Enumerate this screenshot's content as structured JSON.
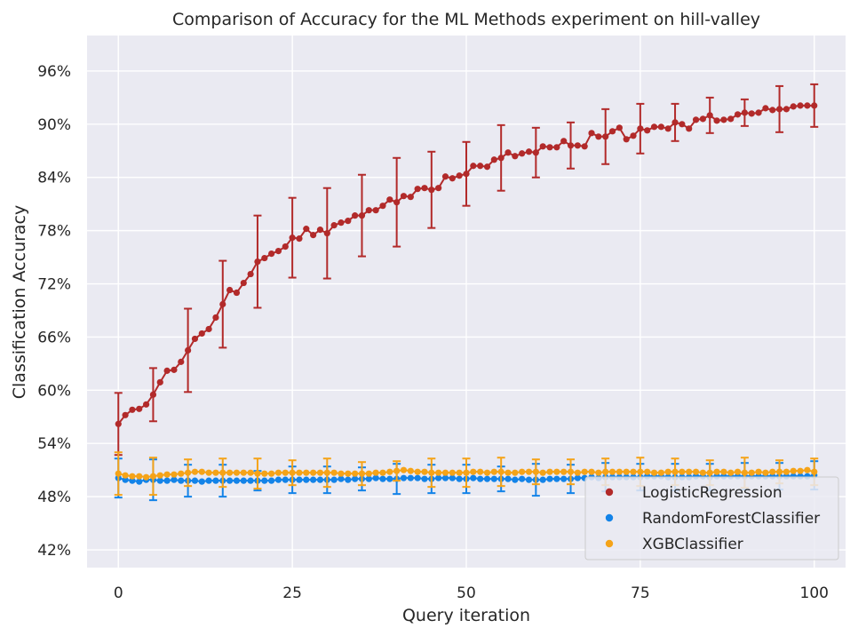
{
  "chart_data": {
    "type": "line",
    "title": "Comparison of Accuracy for the ML Methods experiment on hill-valley",
    "xlabel": "Query iteration",
    "ylabel": "Classification Accuracy",
    "xlim": [
      -4.5,
      104.5
    ],
    "ylim": [
      40,
      100
    ],
    "x_ticks": [
      0,
      25,
      50,
      75,
      100
    ],
    "y_ticks": [
      42,
      48,
      54,
      60,
      66,
      72,
      78,
      84,
      90,
      96
    ],
    "y_tick_labels": [
      "42%",
      "48%",
      "54%",
      "60%",
      "66%",
      "72%",
      "78%",
      "84%",
      "90%",
      "96%"
    ],
    "grid": true,
    "legend_position": "lower-right",
    "errorbar_every": 5,
    "series": [
      {
        "name": "LogisticRegression",
        "color": "#b22a2a",
        "marker": "circle",
        "values": [
          56.2,
          57.2,
          57.8,
          57.9,
          58.4,
          59.5,
          60.9,
          62.2,
          62.3,
          63.2,
          64.5,
          65.8,
          66.4,
          66.9,
          68.2,
          69.7,
          71.3,
          71.0,
          72.1,
          73.1,
          74.5,
          74.9,
          75.4,
          75.7,
          76.2,
          77.2,
          77.1,
          78.2,
          77.5,
          78.1,
          77.7,
          78.6,
          78.9,
          79.1,
          79.7,
          79.7,
          80.3,
          80.3,
          80.8,
          81.5,
          81.2,
          81.9,
          81.8,
          82.7,
          82.8,
          82.6,
          82.8,
          84.1,
          83.9,
          84.2,
          84.4,
          85.3,
          85.3,
          85.2,
          86.0,
          86.2,
          86.8,
          86.4,
          86.7,
          86.9,
          86.8,
          87.5,
          87.4,
          87.4,
          88.1,
          87.6,
          87.6,
          87.5,
          89.0,
          88.6,
          88.6,
          89.2,
          89.6,
          88.3,
          88.7,
          89.5,
          89.3,
          89.7,
          89.7,
          89.5,
          90.2,
          90.0,
          89.5,
          90.5,
          90.6,
          91.0,
          90.4,
          90.5,
          90.6,
          91.1,
          91.3,
          91.2,
          91.3,
          91.8,
          91.6,
          91.7,
          91.7,
          92.0,
          92.1,
          92.1,
          92.1
        ],
        "error": [
          3.5,
          3.0,
          3.0,
          3.0,
          3.0,
          3.0,
          3.0,
          3.0,
          3.0,
          3.0,
          4.7,
          4.7,
          4.7,
          4.7,
          4.7,
          4.9,
          4.9,
          4.9,
          4.9,
          4.9,
          5.2,
          5.2,
          5.2,
          5.2,
          5.2,
          4.5,
          4.5,
          4.5,
          4.5,
          4.5,
          5.1,
          5.1,
          5.1,
          5.1,
          5.1,
          4.6,
          4.6,
          4.6,
          4.6,
          4.6,
          5.0,
          5.0,
          5.0,
          5.0,
          5.0,
          4.3,
          4.3,
          4.3,
          4.3,
          4.3,
          3.6,
          3.6,
          3.6,
          3.6,
          3.6,
          3.7,
          3.7,
          3.7,
          3.7,
          3.7,
          2.8,
          2.8,
          2.8,
          2.8,
          2.8,
          2.6,
          2.6,
          2.6,
          2.6,
          2.6,
          3.1,
          3.1,
          3.1,
          3.1,
          3.1,
          2.8,
          2.8,
          2.8,
          2.8,
          2.8,
          2.1,
          2.1,
          2.1,
          2.1,
          2.1,
          2.0,
          2.0,
          2.0,
          2.0,
          2.0,
          1.5,
          1.5,
          1.5,
          1.5,
          1.5,
          2.6,
          2.6,
          2.6,
          2.6,
          2.6,
          2.4
        ]
      },
      {
        "name": "RandomForestClassifier",
        "color": "#1383e8",
        "marker": "circle",
        "values": [
          50.1,
          49.9,
          49.8,
          49.7,
          49.9,
          49.9,
          49.8,
          49.8,
          49.9,
          49.8,
          49.8,
          49.8,
          49.7,
          49.8,
          49.8,
          49.8,
          49.8,
          49.8,
          49.8,
          49.8,
          49.8,
          49.8,
          49.8,
          49.9,
          49.9,
          49.9,
          49.9,
          49.9,
          49.9,
          49.9,
          49.9,
          49.9,
          50.0,
          49.9,
          50.0,
          50.0,
          50.0,
          50.1,
          50.0,
          50.0,
          50.0,
          50.1,
          50.1,
          50.1,
          50.0,
          50.0,
          50.1,
          50.1,
          50.1,
          50.0,
          50.0,
          50.1,
          50.0,
          50.0,
          50.0,
          50.0,
          50.0,
          49.9,
          50.0,
          49.9,
          49.9,
          49.9,
          50.0,
          50.0,
          50.0,
          50.0,
          50.1,
          50.1,
          50.2,
          50.1,
          50.2,
          50.2,
          50.2,
          50.2,
          50.2,
          50.2,
          50.3,
          50.3,
          50.3,
          50.2,
          50.2,
          50.2,
          50.2,
          50.3,
          50.3,
          50.2,
          50.3,
          50.3,
          50.3,
          50.3,
          50.3,
          50.3,
          50.3,
          50.3,
          50.3,
          50.3,
          50.3,
          50.3,
          50.3,
          50.3,
          50.4
        ],
        "error": [
          2.2,
          2.2,
          2.2,
          2.2,
          2.2,
          2.3,
          2.3,
          2.3,
          2.3,
          2.3,
          1.8,
          1.8,
          1.8,
          1.8,
          1.8,
          1.8,
          1.8,
          1.8,
          1.8,
          1.8,
          1.1,
          1.1,
          1.1,
          1.1,
          1.1,
          1.5,
          1.5,
          1.5,
          1.5,
          1.5,
          1.5,
          1.5,
          1.5,
          1.5,
          1.5,
          1.3,
          1.3,
          1.3,
          1.3,
          1.3,
          1.7,
          1.7,
          1.7,
          1.7,
          1.7,
          1.6,
          1.6,
          1.6,
          1.6,
          1.6,
          1.6,
          1.6,
          1.6,
          1.6,
          1.6,
          1.4,
          1.4,
          1.4,
          1.4,
          1.4,
          1.8,
          1.8,
          1.8,
          1.8,
          1.8,
          1.6,
          1.6,
          1.6,
          1.6,
          1.6,
          1.6,
          1.6,
          1.6,
          1.6,
          1.6,
          1.5,
          1.5,
          1.5,
          1.5,
          1.5,
          1.5,
          1.5,
          1.5,
          1.5,
          1.5,
          1.5,
          1.5,
          1.5,
          1.5,
          1.5,
          1.5,
          1.5,
          1.5,
          1.5,
          1.5,
          1.5,
          1.5,
          1.5,
          1.5,
          1.5,
          1.6
        ]
      },
      {
        "name": "XGBClassifier",
        "color": "#f5a318",
        "marker": "circle",
        "values": [
          50.6,
          50.4,
          50.3,
          50.3,
          50.2,
          50.3,
          50.4,
          50.5,
          50.5,
          50.6,
          50.7,
          50.8,
          50.8,
          50.7,
          50.7,
          50.7,
          50.7,
          50.7,
          50.7,
          50.7,
          50.6,
          50.6,
          50.6,
          50.7,
          50.7,
          50.7,
          50.7,
          50.7,
          50.7,
          50.7,
          50.7,
          50.7,
          50.6,
          50.6,
          50.6,
          50.6,
          50.6,
          50.7,
          50.7,
          50.8,
          50.9,
          51.0,
          50.9,
          50.8,
          50.8,
          50.7,
          50.7,
          50.7,
          50.7,
          50.7,
          50.7,
          50.8,
          50.8,
          50.7,
          50.8,
          50.8,
          50.7,
          50.7,
          50.8,
          50.8,
          50.8,
          50.7,
          50.8,
          50.8,
          50.8,
          50.8,
          50.7,
          50.8,
          50.8,
          50.7,
          50.8,
          50.8,
          50.8,
          50.8,
          50.8,
          50.8,
          50.8,
          50.7,
          50.7,
          50.8,
          50.8,
          50.8,
          50.8,
          50.8,
          50.7,
          50.7,
          50.8,
          50.8,
          50.7,
          50.8,
          50.7,
          50.7,
          50.8,
          50.7,
          50.8,
          50.8,
          50.8,
          50.9,
          50.9,
          51.0,
          50.8
        ],
        "error": [
          2.4,
          2.4,
          2.4,
          2.4,
          2.4,
          2.1,
          2.1,
          2.1,
          2.1,
          2.1,
          1.5,
          1.5,
          1.5,
          1.5,
          1.5,
          1.6,
          1.6,
          1.6,
          1.6,
          1.6,
          1.7,
          1.7,
          1.7,
          1.7,
          1.7,
          1.4,
          1.4,
          1.4,
          1.4,
          1.4,
          1.6,
          1.6,
          1.6,
          1.6,
          1.6,
          1.3,
          1.3,
          1.3,
          1.3,
          1.3,
          1.1,
          1.1,
          1.1,
          1.1,
          1.1,
          1.6,
          1.6,
          1.6,
          1.6,
          1.6,
          1.6,
          1.6,
          1.6,
          1.6,
          1.6,
          1.6,
          1.6,
          1.6,
          1.6,
          1.6,
          1.4,
          1.4,
          1.4,
          1.4,
          1.4,
          1.4,
          1.4,
          1.4,
          1.4,
          1.4,
          1.5,
          1.5,
          1.5,
          1.5,
          1.5,
          1.6,
          1.6,
          1.6,
          1.6,
          1.6,
          1.5,
          1.5,
          1.5,
          1.5,
          1.5,
          1.4,
          1.4,
          1.4,
          1.4,
          1.4,
          1.7,
          1.7,
          1.7,
          1.7,
          1.7,
          1.3,
          1.3,
          1.3,
          1.3,
          1.3,
          1.5
        ]
      }
    ]
  }
}
